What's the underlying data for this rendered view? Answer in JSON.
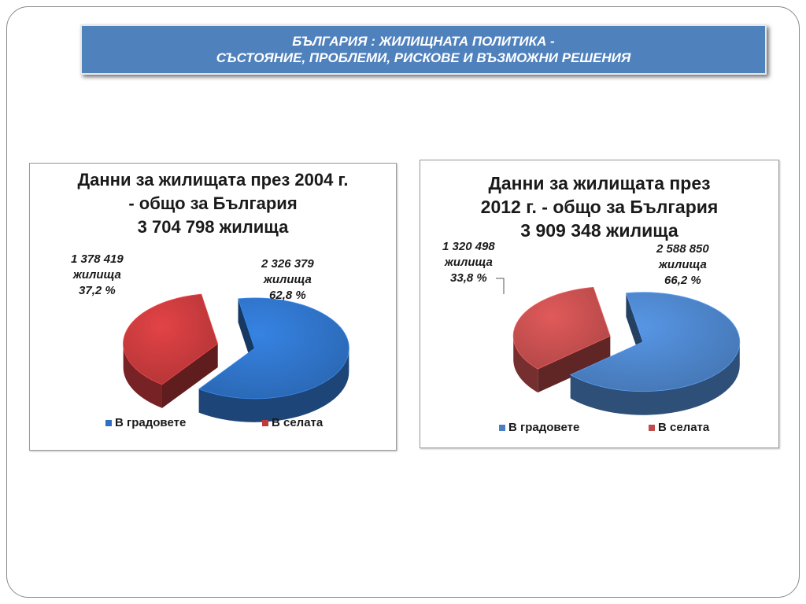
{
  "slide": {
    "title_line1": "БЪЛГАРИЯ : ЖИЛИЩНАТА ПОЛИТИКА -",
    "title_line2": "СЪСТОЯНИЕ, ПРОБЛЕМИ, РИСКОВЕ И ВЪЗМОЖНИ РЕШЕНИЯ",
    "accent_color": "#4f81bd"
  },
  "chart_data": [
    {
      "type": "pie",
      "style": "3d-exploded",
      "title_lines": [
        "Данни за жилищата през 2004 г.",
        "- общо за България",
        "3 704 798 жилища"
      ],
      "categories": [
        "В градовете",
        "В селата"
      ],
      "values": [
        2326379,
        1378419
      ],
      "percent": [
        62.8,
        37.2
      ],
      "labels": [
        [
          "2 326 379",
          "жилища",
          "62,8 %"
        ],
        [
          "1 378 419",
          "жилища",
          "37,2 %"
        ]
      ],
      "colors": [
        "#2e6fc0",
        "#c0393b"
      ],
      "legend_position": "bottom",
      "legend": [
        "В градовете",
        "В селата"
      ]
    },
    {
      "type": "pie",
      "style": "3d-exploded",
      "title_lines": [
        "Данни за жилищата през",
        "2012 г. - общо за България",
        "3 909 348 жилища"
      ],
      "categories": [
        "В градовете",
        "В селата"
      ],
      "values": [
        2588850,
        1320498
      ],
      "percent": [
        66.2,
        33.8
      ],
      "labels": [
        [
          "2 588 850",
          "жилища",
          "66,2 %"
        ],
        [
          "1 320 498",
          "жилища",
          "33,8 %"
        ]
      ],
      "colors": [
        "#4a7fc2",
        "#bf4c4c"
      ],
      "legend_position": "bottom",
      "legend": [
        "В градовете",
        "В селата"
      ]
    }
  ]
}
